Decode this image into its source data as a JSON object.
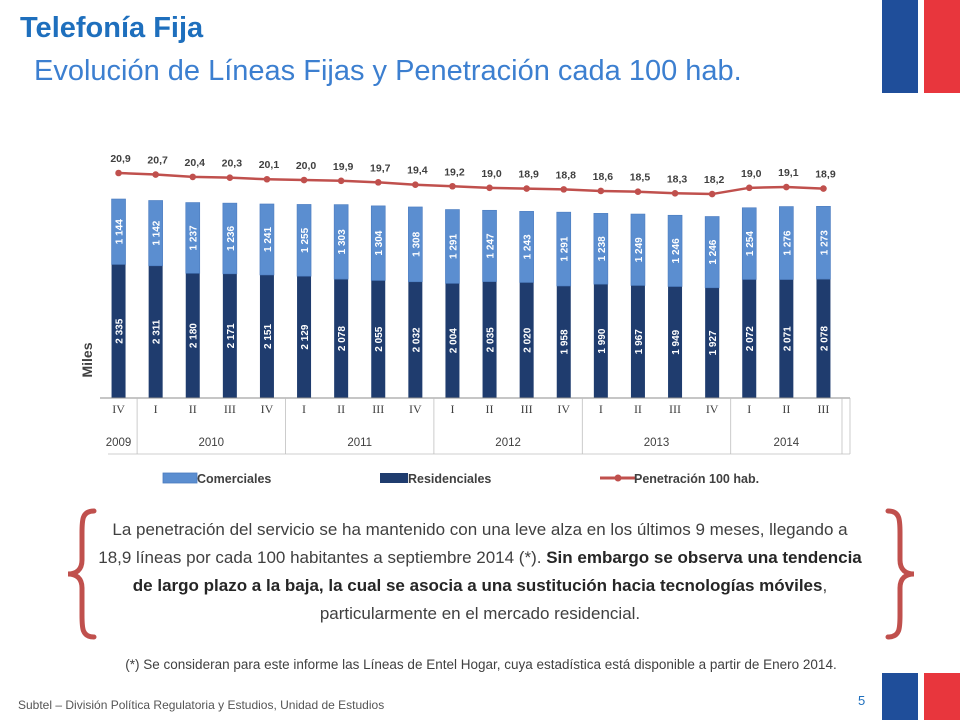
{
  "title": "Telefonía Fija",
  "subtitle": "Evolución de Líneas Fijas y Penetración cada 100 hab.",
  "body_text": {
    "part1": "La penetración del servicio se ha mantenido con una leve alza en los últimos 9 meses, llegando a 18,9 líneas por cada 100 habitantes a septiembre 2014 (*). ",
    "part2_bold": "Sin embargo se observa una tendencia de largo plazo a la baja, la cual se asocia a una sustitución hacia tecnologías móviles",
    "part3": ", particularmente en el mercado residencial."
  },
  "note": "(*) Se consideran para este informe las Líneas de Entel Hogar, cuya estadística está disponible a partir de Enero 2014.",
  "footer": "Subtel – División Política Regulatoria y Estudios, Unidad de Estudios",
  "page_number": "5",
  "colors": {
    "title": "#1e6fbd",
    "comerciales": "#5b8ed0",
    "residenciales": "#1f3c6e",
    "penetracion": "#c0504d",
    "flag_blue": "#1f4e9a",
    "flag_red": "#e8363d",
    "brace": "#c0504d"
  },
  "chart_data": {
    "type": "bar",
    "stacked": true,
    "ylabel": "Miles",
    "categories": [
      "IV",
      "I",
      "II",
      "III",
      "IV",
      "I",
      "II",
      "III",
      "IV",
      "I",
      "II",
      "III",
      "IV",
      "I",
      "II",
      "III",
      "IV",
      "I",
      "II",
      "III"
    ],
    "years": [
      {
        "label": "2009",
        "count": 1
      },
      {
        "label": "2010",
        "count": 4
      },
      {
        "label": "2011",
        "count": 4
      },
      {
        "label": "2012",
        "count": 4
      },
      {
        "label": "2013",
        "count": 4
      },
      {
        "label": "2014",
        "count": 3
      }
    ],
    "series": [
      {
        "name": "Residenciales",
        "values": [
          2335,
          2311,
          2180,
          2171,
          2151,
          2129,
          2078,
          2055,
          2032,
          2004,
          2035,
          2020,
          1958,
          1990,
          1967,
          1949,
          1927,
          2072,
          2071,
          2078
        ],
        "labels": [
          "2 335",
          "2 311",
          "2 180",
          "2 171",
          "2 151",
          "2 129",
          "2 078",
          "2 055",
          "2 032",
          "2 004",
          "2 035",
          "2 020",
          "1 958",
          "1 990",
          "1 967",
          "1 949",
          "1 927",
          "2 072",
          "2 071",
          "2 078"
        ]
      },
      {
        "name": "Comerciales",
        "values": [
          1144,
          1142,
          1237,
          1236,
          1241,
          1255,
          1303,
          1304,
          1308,
          1291,
          1247,
          1243,
          1291,
          1238,
          1249,
          1246,
          1246,
          1254,
          1276,
          1273
        ],
        "labels": [
          "1 144",
          "1 142",
          "1 237",
          "1 236",
          "1 241",
          "1 255",
          "1 303",
          "1 304",
          "1 308",
          "1 291",
          "1 247",
          "1 243",
          "1 291",
          "1 238",
          "1 249",
          "1 246",
          "1 246",
          "1 254",
          "1 276",
          "1 273"
        ]
      },
      {
        "name": "Penetración 100 hab.",
        "values": [
          20.9,
          20.7,
          20.4,
          20.3,
          20.1,
          20.0,
          19.9,
          19.7,
          19.4,
          19.2,
          19.0,
          18.9,
          18.8,
          18.6,
          18.5,
          18.3,
          18.2,
          19.0,
          19.1,
          18.9
        ],
        "labels": [
          "20,9",
          "20,7",
          "20,4",
          "20,3",
          "20,1",
          "20,0",
          "19,9",
          "19,7",
          "19,4",
          "19,2",
          "19,0",
          "18,9",
          "18,8",
          "18,6",
          "18,5",
          "18,3",
          "18,2",
          "19,0",
          "19,1",
          "18,9"
        ]
      }
    ],
    "legend": [
      "Comerciales",
      "Residenciales",
      "Penetración 100 hab."
    ],
    "legend_position": "bottom"
  }
}
